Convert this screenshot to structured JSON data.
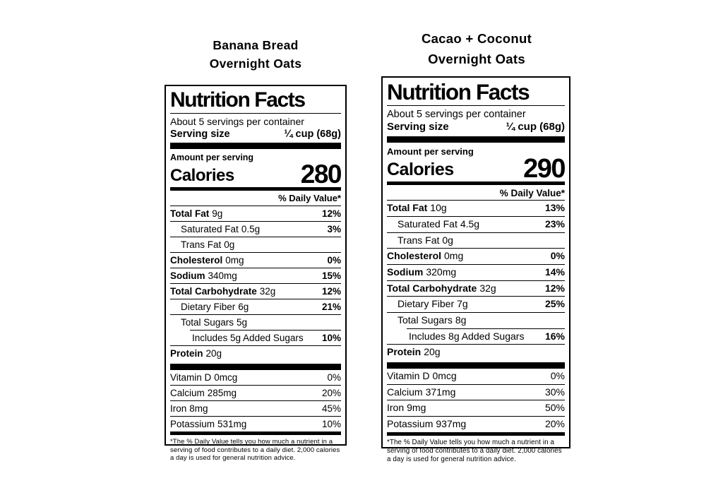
{
  "labels": [
    {
      "title_line1": "Banana Bread",
      "title_line2": "Overnight Oats",
      "heading": "Nutrition Facts",
      "servings_per_container": "About 5 servings per container",
      "serving_size_label": "Serving size",
      "serving_size_value": "¼ cup (68g)",
      "amount_per_serving": "Amount per serving",
      "calories_label": "Calories",
      "calories_value": "280",
      "daily_value_header": "% Daily Value*",
      "nutrients": [
        {
          "name": "Total Fat",
          "amount": "9g",
          "dv": "12%"
        },
        {
          "name": "Saturated Fat",
          "amount": "0.5g",
          "dv": "3%"
        },
        {
          "name": "Trans Fat",
          "amount": "0g",
          "dv": ""
        },
        {
          "name": "Cholesterol",
          "amount": "0mg",
          "dv": "0%"
        },
        {
          "name": "Sodium",
          "amount": "340mg",
          "dv": "15%"
        },
        {
          "name": "Total Carbohydrate",
          "amount": "32g",
          "dv": "12%"
        },
        {
          "name": "Dietary Fiber",
          "amount": "6g",
          "dv": "21%"
        },
        {
          "name": "Total Sugars",
          "amount": "5g",
          "dv": ""
        },
        {
          "name": "Includes 5g Added Sugars",
          "amount": "",
          "dv": "10%"
        },
        {
          "name": "Protein",
          "amount": "20g",
          "dv": ""
        }
      ],
      "micros": [
        {
          "name": "Vitamin D",
          "amount": "0mcg",
          "dv": "0%"
        },
        {
          "name": "Calcium",
          "amount": "285mg",
          "dv": "20%"
        },
        {
          "name": "Iron",
          "amount": "8mg",
          "dv": "45%"
        },
        {
          "name": "Potassium",
          "amount": "531mg",
          "dv": "10%"
        }
      ],
      "footnote": "*The % Daily Value tells you how much a nutrient in a serving of food contributes to a daily diet. 2,000 calories a day is used for general nutrition advice."
    },
    {
      "title_line1": "Cacao + Coconut",
      "title_line2": "Overnight Oats",
      "heading": "Nutrition Facts",
      "servings_per_container": "About 5 servings per container",
      "serving_size_label": "Serving size",
      "serving_size_value": "¼ cup (68g)",
      "amount_per_serving": "Amount per serving",
      "calories_label": "Calories",
      "calories_value": "290",
      "daily_value_header": "% Daily Value*",
      "nutrients": [
        {
          "name": "Total Fat",
          "amount": "10g",
          "dv": "13%"
        },
        {
          "name": "Saturated Fat",
          "amount": "4.5g",
          "dv": "23%"
        },
        {
          "name": "Trans Fat",
          "amount": "0g",
          "dv": ""
        },
        {
          "name": "Cholesterol",
          "amount": "0mg",
          "dv": "0%"
        },
        {
          "name": "Sodium",
          "amount": "320mg",
          "dv": "14%"
        },
        {
          "name": "Total Carbohydrate",
          "amount": "32g",
          "dv": "12%"
        },
        {
          "name": "Dietary Fiber",
          "amount": "7g",
          "dv": "25%"
        },
        {
          "name": "Total Sugars",
          "amount": "8g",
          "dv": ""
        },
        {
          "name": "Includes 8g Added Sugars",
          "amount": "",
          "dv": "16%"
        },
        {
          "name": "Protein",
          "amount": "20g",
          "dv": ""
        }
      ],
      "micros": [
        {
          "name": "Vitamin D",
          "amount": "0mcg",
          "dv": "0%"
        },
        {
          "name": "Calcium",
          "amount": "371mg",
          "dv": "30%"
        },
        {
          "name": "Iron",
          "amount": "9mg",
          "dv": "50%"
        },
        {
          "name": "Potassium",
          "amount": "937mg",
          "dv": "20%"
        }
      ],
      "footnote": "*The % Daily Value tells you how much a nutrient in a serving of food contributes to a daily diet. 2,000 calories a day is used for general nutrition advice."
    }
  ]
}
